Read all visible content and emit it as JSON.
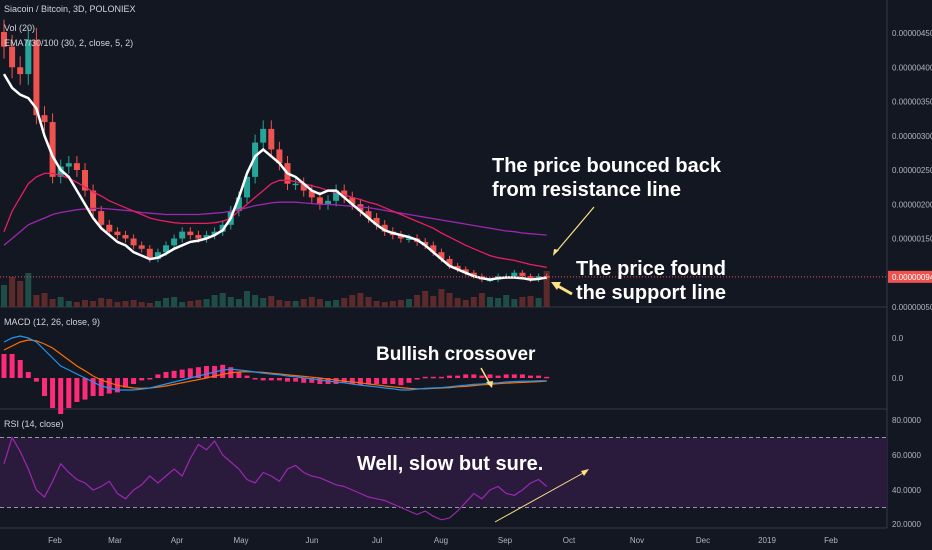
{
  "header": {
    "symbol": "Siacoin / Bitcoin, 3D, POLONIEX",
    "volume": "Vol (20)",
    "ema": "EMA7/30/100 (30, 2, close, 5, 2)"
  },
  "indicators": {
    "macd": "MACD (12, 26, close, 9)",
    "rsi": "RSI (14, close)"
  },
  "colors": {
    "background": "#131722",
    "up": "#26a69a",
    "down": "#ef5350",
    "ema_fast": "#ffffff",
    "ema_mid": "#e91e63",
    "ema_slow": "#9c27b0",
    "macd": "#2196f3",
    "signal": "#ff6d00",
    "histogram": "#ff2b78",
    "rsi": "#9c27b0",
    "arrow": "#ffe082"
  },
  "annotations": {
    "resistance": [
      "The price bounced back",
      "from resistance line"
    ],
    "support": [
      "The price found",
      "the support line"
    ],
    "crossover": "Bullish crossover",
    "slow": "Well, slow but sure."
  },
  "chart_data": {
    "type": "candlestick",
    "x_labels": [
      "Feb",
      "Mar",
      "Apr",
      "May",
      "Jun",
      "Jul",
      "Aug",
      "Sep",
      "Oct",
      "Nov",
      "Dec",
      "2019",
      "Feb"
    ],
    "price": {
      "ticks": [
        "0.00000450",
        "0.00000400",
        "0.00000350",
        "0.00000300",
        "0.00000250",
        "0.00000200",
        "0.00000150",
        "0.00000094",
        "0.00000050"
      ],
      "tick_values": [
        4.5e-06,
        4e-06,
        3.5e-06,
        3e-06,
        2.5e-06,
        2e-06,
        1.5e-06,
        9.4e-07,
        5e-07
      ],
      "last_price": "0.00000094",
      "last_value": 9.4e-07,
      "close": [
        4.3,
        4.0,
        3.9,
        4.4,
        3.3,
        3.2,
        2.4,
        2.55,
        2.6,
        2.5,
        2.2,
        1.9,
        1.7,
        1.6,
        1.55,
        1.5,
        1.4,
        1.35,
        1.2,
        1.3,
        1.4,
        1.5,
        1.6,
        1.55,
        1.5,
        1.55,
        1.6,
        1.7,
        1.9,
        2.1,
        2.4,
        2.9,
        3.1,
        2.8,
        2.6,
        2.3,
        2.3,
        2.2,
        2.1,
        2.0,
        2.05,
        2.2,
        2.1,
        2.0,
        1.9,
        1.8,
        1.7,
        1.6,
        1.55,
        1.5,
        1.5,
        1.45,
        1.4,
        1.3,
        1.2,
        1.1,
        1.05,
        1.0,
        0.95,
        0.9,
        0.9,
        0.95,
        0.95,
        1.0,
        0.95,
        0.9,
        0.95,
        0.94
      ],
      "ema_fast": [
        3.9,
        3.7,
        3.6,
        3.55,
        3.4,
        3.0,
        2.7,
        2.5,
        2.4,
        2.2,
        2.0,
        1.8,
        1.65,
        1.55,
        1.45,
        1.4,
        1.3,
        1.25,
        1.2,
        1.22,
        1.28,
        1.35,
        1.4,
        1.45,
        1.47,
        1.5,
        1.55,
        1.62,
        1.8,
        2.1,
        2.45,
        2.7,
        2.8,
        2.7,
        2.6,
        2.45,
        2.4,
        2.3,
        2.2,
        2.15,
        2.2,
        2.2,
        2.1,
        2.0,
        1.9,
        1.8,
        1.7,
        1.62,
        1.58,
        1.55,
        1.52,
        1.48,
        1.4,
        1.3,
        1.2,
        1.1,
        1.05,
        1.0,
        0.95,
        0.92,
        0.9,
        0.92,
        0.93,
        0.93,
        0.92,
        0.9,
        0.91,
        0.93
      ],
      "ema_mid": [
        1.6,
        1.9,
        2.1,
        2.3,
        2.4,
        2.45,
        2.45,
        2.42,
        2.38,
        2.32,
        2.25,
        2.18,
        2.12,
        2.05,
        2.0,
        1.95,
        1.9,
        1.85,
        1.8,
        1.77,
        1.75,
        1.73,
        1.72,
        1.72,
        1.72,
        1.72,
        1.73,
        1.75,
        1.8,
        1.9,
        2.0,
        2.1,
        2.2,
        2.3,
        2.35,
        2.35,
        2.33,
        2.3,
        2.27,
        2.24,
        2.2,
        2.17,
        2.14,
        2.1,
        2.07,
        2.03,
        2.0,
        1.95,
        1.9,
        1.85,
        1.8,
        1.75,
        1.7,
        1.65,
        1.58,
        1.52,
        1.46,
        1.4,
        1.35,
        1.3,
        1.25,
        1.22,
        1.2,
        1.18,
        1.15,
        1.12,
        1.1,
        1.08
      ],
      "ema_slow": [
        1.4,
        1.5,
        1.6,
        1.7,
        1.75,
        1.8,
        1.85,
        1.88,
        1.9,
        1.92,
        1.93,
        1.94,
        1.94,
        1.93,
        1.92,
        1.91,
        1.9,
        1.88,
        1.87,
        1.86,
        1.85,
        1.85,
        1.85,
        1.85,
        1.85,
        1.86,
        1.87,
        1.88,
        1.9,
        1.92,
        1.95,
        1.98,
        2.0,
        2.02,
        2.03,
        2.03,
        2.03,
        2.02,
        2.01,
        2.0,
        2.0,
        1.99,
        1.98,
        1.97,
        1.96,
        1.95,
        1.93,
        1.91,
        1.89,
        1.87,
        1.85,
        1.83,
        1.81,
        1.79,
        1.77,
        1.75,
        1.73,
        1.71,
        1.69,
        1.67,
        1.65,
        1.63,
        1.61,
        1.6,
        1.58,
        1.57,
        1.56,
        1.55
      ]
    },
    "volume": [
      22,
      30,
      26,
      34,
      12,
      14,
      8,
      10,
      6,
      5,
      7,
      6,
      9,
      8,
      5,
      6,
      7,
      5,
      4,
      6,
      9,
      10,
      5,
      6,
      7,
      8,
      12,
      14,
      10,
      8,
      16,
      12,
      9,
      11,
      7,
      6,
      6,
      8,
      10,
      8,
      6,
      7,
      9,
      12,
      14,
      10,
      6,
      5,
      6,
      7,
      8,
      12,
      16,
      11,
      18,
      14,
      9,
      7,
      10,
      14,
      10,
      9,
      12,
      8,
      10,
      11,
      9,
      36
    ],
    "macd": {
      "ticks": [
        "0.0",
        "0.0"
      ],
      "macd": [
        0.9,
        1.0,
        1.05,
        1.0,
        0.9,
        0.7,
        0.5,
        0.3,
        0.2,
        0.1,
        0.0,
        -0.1,
        -0.2,
        -0.25,
        -0.3,
        -0.3,
        -0.3,
        -0.28,
        -0.25,
        -0.2,
        -0.15,
        -0.1,
        -0.05,
        0.0,
        0.05,
        0.1,
        0.15,
        0.2,
        0.22,
        0.2,
        0.18,
        0.15,
        0.12,
        0.1,
        0.08,
        0.05,
        0.03,
        0.0,
        -0.02,
        -0.05,
        -0.08,
        -0.1,
        -0.12,
        -0.15,
        -0.18,
        -0.2,
        -0.22,
        -0.25,
        -0.27,
        -0.3,
        -0.3,
        -0.28,
        -0.26,
        -0.25,
        -0.24,
        -0.22,
        -0.2,
        -0.18,
        -0.16,
        -0.15,
        -0.13,
        -0.12,
        -0.1,
        -0.09,
        -0.08,
        -0.08,
        -0.07,
        -0.07
      ],
      "signal": [
        0.7,
        0.8,
        0.9,
        0.95,
        0.93,
        0.85,
        0.75,
        0.6,
        0.45,
        0.3,
        0.18,
        0.05,
        -0.05,
        -0.12,
        -0.18,
        -0.22,
        -0.25,
        -0.26,
        -0.25,
        -0.23,
        -0.2,
        -0.16,
        -0.12,
        -0.08,
        -0.04,
        0.0,
        0.05,
        0.09,
        0.13,
        0.15,
        0.16,
        0.15,
        0.14,
        0.12,
        0.1,
        0.08,
        0.06,
        0.04,
        0.02,
        0.0,
        -0.03,
        -0.05,
        -0.08,
        -0.1,
        -0.12,
        -0.15,
        -0.17,
        -0.2,
        -0.22,
        -0.24,
        -0.26,
        -0.27,
        -0.27,
        -0.26,
        -0.25,
        -0.24,
        -0.22,
        -0.21,
        -0.19,
        -0.17,
        -0.16,
        -0.14,
        -0.13,
        -0.12,
        -0.11,
        -0.1,
        -0.09,
        -0.08
      ]
    },
    "rsi": {
      "ticks": [
        "80.0000",
        "60.0000",
        "40.0000",
        "20.0000"
      ],
      "tick_values": [
        80,
        60,
        40,
        20
      ],
      "band": [
        30,
        70
      ],
      "values": [
        55,
        70,
        62,
        52,
        40,
        36,
        45,
        55,
        50,
        46,
        44,
        40,
        42,
        45,
        38,
        35,
        40,
        43,
        48,
        44,
        48,
        52,
        48,
        58,
        66,
        63,
        68,
        60,
        56,
        52,
        46,
        44,
        50,
        48,
        45,
        52,
        54,
        50,
        48,
        47,
        45,
        43,
        42,
        40,
        38,
        36,
        35,
        34,
        32,
        30,
        28,
        26,
        28,
        25,
        23,
        24,
        28,
        33,
        38,
        35,
        40,
        42,
        38,
        37,
        40,
        44,
        46,
        42
      ]
    }
  }
}
